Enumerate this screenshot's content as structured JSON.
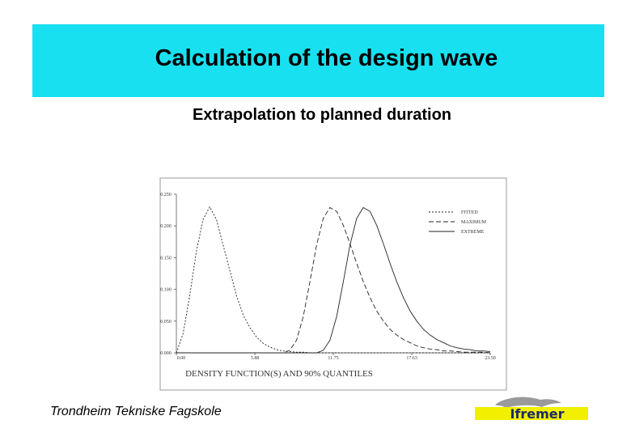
{
  "header": {
    "title": "Calculation of the design wave"
  },
  "subtitle": "Extrapolation to planned duration",
  "chart_data": {
    "type": "line",
    "xlabel": "DENSITY FUNCTION(S) AND 90% QUANTILES",
    "x": [
      0,
      0.5,
      1,
      1.5,
      2,
      2.5,
      3,
      3.5,
      4,
      4.5,
      5,
      5.5,
      6,
      6.5,
      7,
      7.5,
      8,
      8.5,
      9,
      9.5,
      10,
      10.5,
      11,
      11.5,
      12,
      12.5,
      13,
      13.5,
      14,
      14.5,
      15,
      15.5,
      16,
      16.5,
      17,
      17.5,
      18,
      18.5,
      19,
      19.5,
      20,
      20.5,
      21,
      21.5,
      22,
      22.5,
      23,
      23.5
    ],
    "series": [
      {
        "name": "FITTED",
        "color": "#222222",
        "style": "dotted",
        "values": [
          0,
          0.03,
          0.09,
          0.16,
          0.21,
          0.23,
          0.21,
          0.17,
          0.13,
          0.09,
          0.06,
          0.04,
          0.025,
          0.015,
          0.009,
          0.005,
          0.003,
          0.002,
          0.001,
          0.001,
          0,
          0,
          0,
          0,
          0,
          0,
          0,
          0,
          0,
          0,
          0,
          0,
          0,
          0,
          0,
          0,
          0,
          0,
          0,
          0,
          0,
          0,
          0,
          0,
          0,
          0,
          0,
          0
        ]
      },
      {
        "name": "MAXIMUM",
        "color": "#222222",
        "style": "dashed",
        "values": [
          0,
          0,
          0,
          0,
          0,
          0,
          0,
          0,
          0,
          0,
          0,
          0,
          0,
          0,
          0,
          0,
          0,
          0.004,
          0.02,
          0.057,
          0.112,
          0.17,
          0.212,
          0.229,
          0.223,
          0.201,
          0.172,
          0.141,
          0.112,
          0.087,
          0.066,
          0.05,
          0.037,
          0.028,
          0.021,
          0.016,
          0.011,
          0.008,
          0.006,
          0.005,
          0.003,
          0.003,
          0.002,
          0.001,
          0.001,
          0.001,
          0.001,
          0
        ]
      },
      {
        "name": "EXTREME",
        "color": "#222222",
        "style": "solid",
        "values": [
          0,
          0,
          0,
          0,
          0,
          0,
          0,
          0,
          0,
          0,
          0,
          0,
          0,
          0,
          0,
          0,
          0,
          0,
          0,
          0,
          0,
          0,
          0.004,
          0.02,
          0.057,
          0.112,
          0.17,
          0.212,
          0.229,
          0.223,
          0.201,
          0.172,
          0.141,
          0.112,
          0.087,
          0.066,
          0.05,
          0.037,
          0.028,
          0.021,
          0.016,
          0.011,
          0.008,
          0.006,
          0.005,
          0.003,
          0.003,
          0.002
        ]
      }
    ],
    "xlim": [
      0,
      23.5
    ],
    "xticks": [
      {
        "value": 0,
        "label": "0.00"
      },
      5.88,
      11.75,
      17.63,
      {
        "value": 23.5,
        "label": "23.50"
      }
    ],
    "ylim": [
      0,
      0.25
    ],
    "yticks": [
      {
        "value": 0,
        "label": "0.000"
      },
      {
        "value": 0.05,
        "label": "0.050"
      },
      {
        "value": 0.1,
        "label": "0.100"
      },
      {
        "value": 0.15,
        "label": "0.150"
      },
      {
        "value": 0.2,
        "label": "0.200"
      },
      {
        "value": 0.25,
        "label": "0.250"
      }
    ],
    "legend": "upper right"
  },
  "footer": "Trondheim Tekniske Fagskole",
  "logo": "Ifremer"
}
